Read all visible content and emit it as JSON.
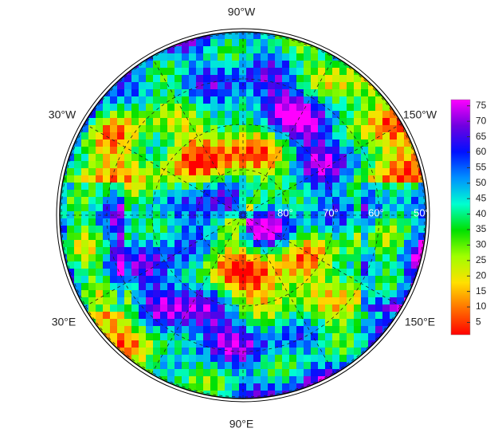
{
  "map": {
    "longitude_labels": [
      "90°W",
      "30°W",
      "150°W",
      "30°E",
      "150°E",
      "90°E"
    ],
    "latitude_labels": [
      "80°",
      "70°",
      "60°",
      "50°"
    ],
    "colorbar": {
      "lim": [
        1,
        77
      ],
      "ticks": [
        5,
        10,
        15,
        20,
        25,
        30,
        35,
        40,
        45,
        50,
        55,
        60,
        65,
        70,
        75
      ],
      "colors": [
        "#ff0000",
        "#ff7000",
        "#ffe000",
        "#a0ff00",
        "#00e000",
        "#00ffd0",
        "#0090ff",
        "#0010ff",
        "#7000e0",
        "#ff00ff"
      ]
    }
  }
}
